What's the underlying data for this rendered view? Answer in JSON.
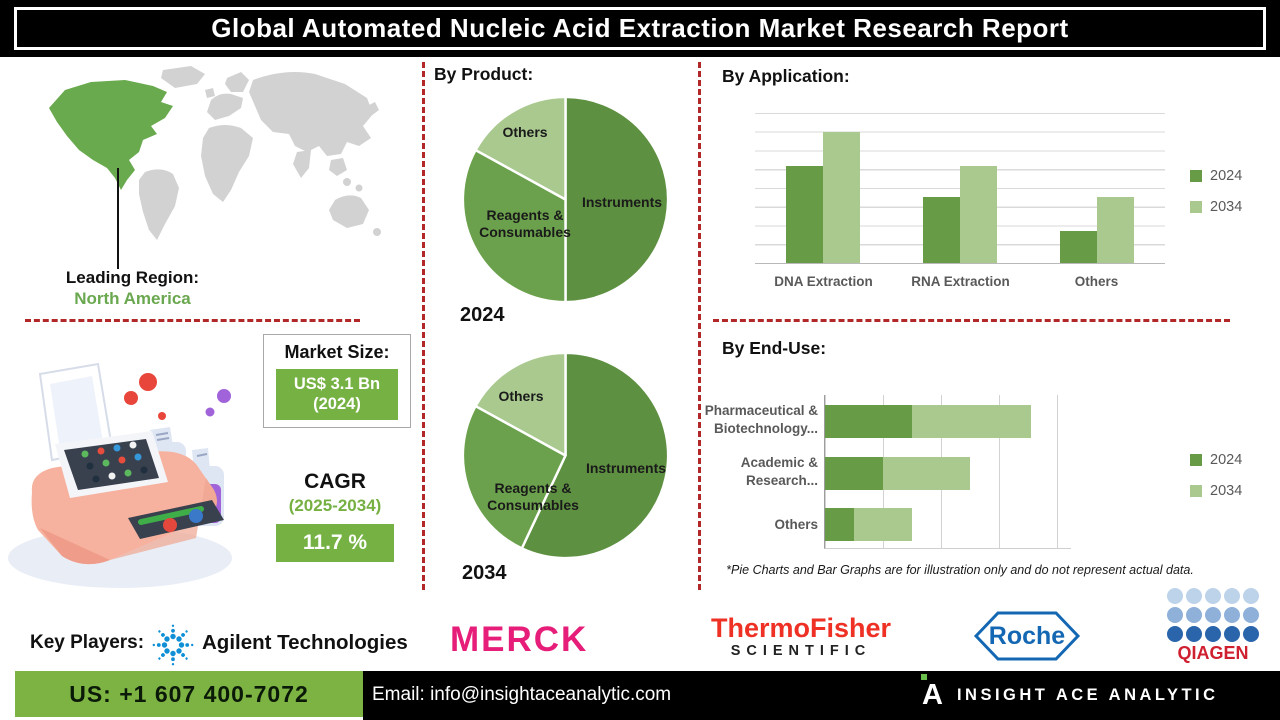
{
  "header": {
    "title": "Global Automated Nucleic Acid Extraction Market Research Report"
  },
  "leading_region": {
    "label": "Leading Region:",
    "value": "North America"
  },
  "market_size": {
    "label": "Market Size:",
    "value": "US$ 3.1 Bn",
    "year": "(2024)"
  },
  "cagr": {
    "label": "CAGR",
    "period": "(2025-2034)",
    "value": "11.7 %"
  },
  "sections": {
    "by_product": "By Product:",
    "by_application": "By Application:",
    "by_end_use": "By End-Use:"
  },
  "footnote": "*Pie Charts and Bar Graphs are for illustration only and do not represent actual data.",
  "colors": {
    "accent_green": "#76b243",
    "map_green": "#6aaa4e",
    "region_text_green": "#6aa84f",
    "cagr_period_green": "#76b043",
    "dashed_red": "#b22727",
    "series_2024": "#679b45",
    "series_2034": "#a9c98f"
  },
  "key_players": {
    "label": "Key Players:",
    "players": [
      {
        "name": "Agilent Technologies",
        "color": "#111111",
        "icon_color": "#0e8fd6"
      },
      {
        "name": "MERCK",
        "color": "#e61e7a"
      },
      {
        "name": "ThermoFisher",
        "sub": "SCIENTIFIC",
        "color": "#ee3124",
        "sub_color": "#222222"
      },
      {
        "name": "Roche",
        "color": "#1468b3"
      },
      {
        "name": "QIAGEN",
        "color": "#cf2030",
        "dot_rows": [
          "#bdd3ea",
          "#8fb0d9",
          "#2a65ab"
        ]
      }
    ]
  },
  "footer": {
    "phone": "US: +1 607 400-7072",
    "email": "Email: info@insightaceanalytic.com",
    "brand": "INSIGHT ACE ANALYTIC",
    "brand_initial": "A",
    "phone_bg": "#7cb342"
  },
  "chart_data": [
    {
      "type": "pie",
      "title": "By Product - 2024",
      "year_label": "2024",
      "labels": [
        "Instruments",
        "Reagents & Consumables",
        "Others"
      ],
      "values": [
        50,
        33,
        17
      ],
      "unit": "percent (estimated from slice angles, illustrative only)",
      "colors": [
        "#5e9041",
        "#6ba14c",
        "#a9c98f"
      ]
    },
    {
      "type": "pie",
      "title": "By Product - 2034",
      "year_label": "2034",
      "labels": [
        "Instruments",
        "Reagents & Consumables",
        "Others"
      ],
      "values": [
        57,
        26,
        17
      ],
      "unit": "percent (estimated from slice angles, illustrative only)",
      "colors": [
        "#5e9041",
        "#6ba14c",
        "#a9c98f"
      ]
    },
    {
      "type": "bar",
      "title": "By Application:",
      "categories": [
        "DNA Extraction",
        "RNA Extraction",
        "Others"
      ],
      "series": [
        {
          "name": "2024",
          "color": "#679b45",
          "values": [
            5.2,
            3.5,
            1.7
          ]
        },
        {
          "name": "2034",
          "color": "#a9c98f",
          "values": [
            7.0,
            5.2,
            3.5
          ]
        }
      ],
      "ylim": [
        0,
        8
      ],
      "grid": true,
      "legend_position": "right",
      "note": "no numeric axis labels shown; values estimated from gridlines, illustrative only"
    },
    {
      "type": "bar",
      "orientation": "horizontal",
      "stacked": true,
      "title": "By End-Use:",
      "categories": [
        "Pharmaceutical & Biotechnology...",
        "Academic & Research...",
        "Others"
      ],
      "category_lines": [
        [
          "Pharmaceutical &",
          "Biotechnology..."
        ],
        [
          "Academic &",
          "Research..."
        ],
        [
          "Others",
          ""
        ]
      ],
      "series": [
        {
          "name": "2024",
          "color": "#679b45",
          "values": [
            1.5,
            1.0,
            0.5
          ]
        },
        {
          "name": "2034",
          "color": "#a9c98f",
          "values": [
            2.05,
            1.5,
            1.0
          ]
        }
      ],
      "xlim": [
        0,
        4.2
      ],
      "grid": true,
      "legend_position": "right",
      "note": "no numeric axis labels shown; values in gridline units, illustrative only"
    }
  ]
}
